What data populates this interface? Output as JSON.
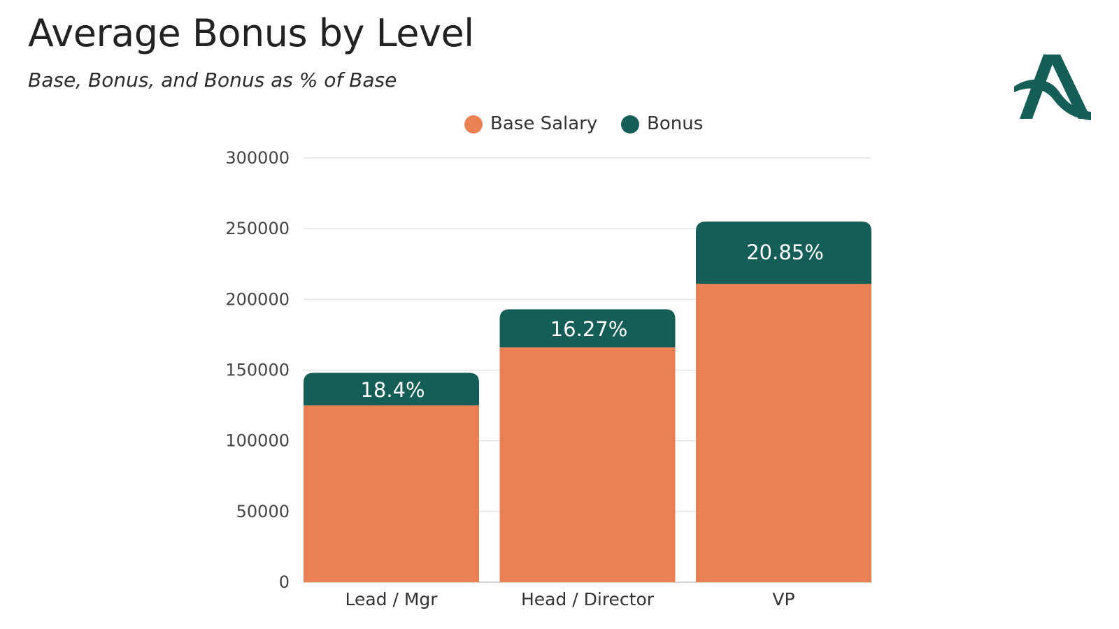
{
  "header": {
    "title": "Average Bonus by Level",
    "subtitle": "Base, Bonus, and Bonus as % of Base"
  },
  "logo": {
    "icon": "stylized-a-logo-icon",
    "color": "#155e58"
  },
  "colors": {
    "base": "#e98153",
    "bonus": "#155e58",
    "grid": "#dddddd",
    "text": "#333333"
  },
  "chart_data": {
    "type": "bar",
    "stacked": true,
    "title": "Average Bonus by Level",
    "subtitle": "Base, Bonus, and Bonus as % of Base",
    "categories": [
      "Lead / Mgr",
      "Head / Director",
      "VP"
    ],
    "series": [
      {
        "name": "Base Salary",
        "values": [
          125000,
          166000,
          211000
        ]
      },
      {
        "name": "Bonus",
        "values": [
          23000,
          27000,
          44000
        ]
      }
    ],
    "data_labels": [
      "18.4%",
      "16.27%",
      "20.85%"
    ],
    "xlabel": "",
    "ylabel": "",
    "ylim": [
      0,
      300000
    ],
    "yticks": [
      "0",
      "50000",
      "100000",
      "150000",
      "200000",
      "250000",
      "300000"
    ],
    "grid": true,
    "legend_position": "top-center"
  }
}
